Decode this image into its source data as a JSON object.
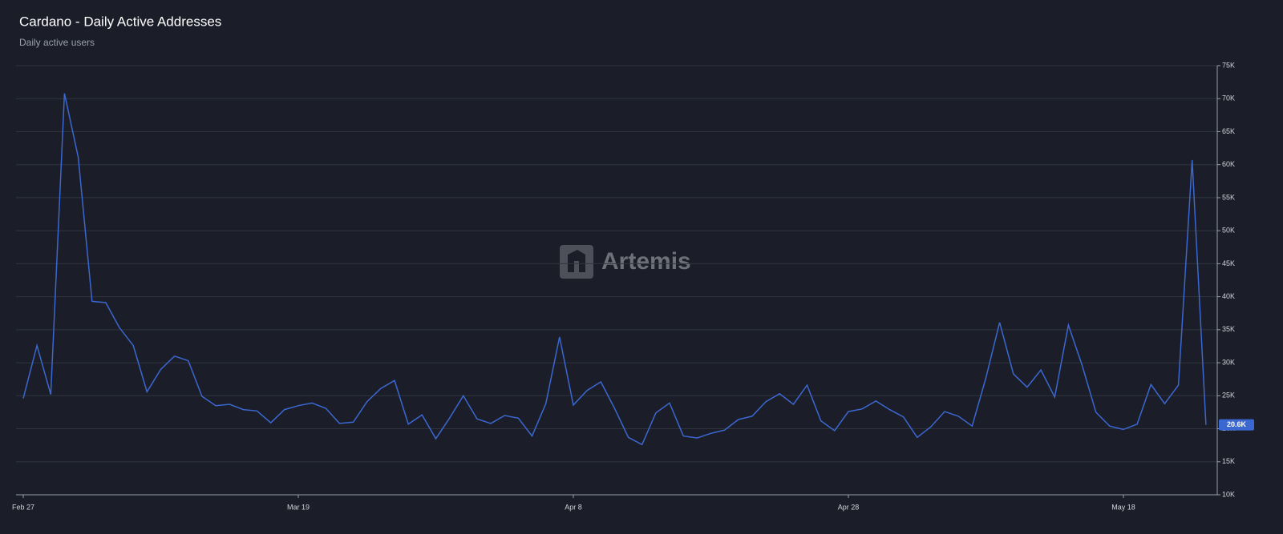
{
  "chart_data": {
    "type": "line",
    "title": "Cardano - Daily Active Addresses",
    "subtitle": "Daily active users",
    "watermark": "Artemis",
    "categories": [
      "Feb 27",
      null,
      null,
      null,
      null,
      null,
      null,
      null,
      null,
      null,
      null,
      null,
      null,
      null,
      null,
      null,
      null,
      null,
      null,
      null,
      "Mar 19",
      null,
      null,
      null,
      null,
      null,
      null,
      null,
      null,
      null,
      null,
      null,
      null,
      null,
      null,
      null,
      null,
      null,
      null,
      null,
      "Apr 8",
      null,
      null,
      null,
      null,
      null,
      null,
      null,
      null,
      null,
      null,
      null,
      null,
      null,
      null,
      null,
      null,
      null,
      null,
      null,
      "Apr 28",
      null,
      null,
      null,
      null,
      null,
      null,
      null,
      null,
      null,
      null,
      null,
      null,
      null,
      null,
      null,
      null,
      null,
      null,
      null,
      "May 18",
      null,
      null,
      null,
      null,
      null,
      null
    ],
    "series": [
      {
        "name": "Daily Active Addresses",
        "color": "#3b67d1",
        "values": [
          24600,
          32600,
          25200,
          70800,
          61100,
          39300,
          39100,
          35300,
          32600,
          25600,
          29000,
          31000,
          30300,
          24900,
          23500,
          23700,
          22900,
          22700,
          20900,
          22900,
          23500,
          23900,
          23100,
          20800,
          21000,
          24100,
          26100,
          27300,
          20700,
          22100,
          18500,
          21600,
          25000,
          21500,
          20800,
          22000,
          21600,
          18900,
          23800,
          33900,
          23600,
          25800,
          27100,
          23100,
          18700,
          17600,
          22400,
          23900,
          18900,
          18600,
          19300,
          19800,
          21400,
          21900,
          24100,
          25300,
          23700,
          26600,
          21200,
          19700,
          22600,
          23000,
          24200,
          22900,
          21800,
          18700,
          20300,
          22600,
          21900,
          20400,
          27700,
          36100,
          28300,
          26300,
          28900,
          24800,
          35700,
          29600,
          22500,
          20400,
          19900,
          20700,
          26700,
          23800,
          26600,
          60700,
          20600
        ],
        "value_labels": [
          null,
          null,
          null,
          null,
          null,
          null,
          null,
          null,
          null,
          null,
          null,
          null,
          null,
          null,
          null,
          null,
          null,
          null,
          null,
          null,
          null,
          null,
          null,
          null,
          null,
          null,
          null,
          null,
          null,
          null,
          null,
          null,
          null,
          null,
          null,
          null,
          null,
          null,
          null,
          null,
          null,
          null,
          null,
          null,
          null,
          null,
          null,
          null,
          null,
          null,
          null,
          null,
          null,
          null,
          null,
          null,
          null,
          null,
          null,
          null,
          null,
          null,
          null,
          null,
          null,
          null,
          null,
          null,
          null,
          null,
          null,
          null,
          null,
          null,
          null,
          null,
          null,
          null,
          null,
          null,
          null,
          null,
          null,
          null,
          null,
          null,
          "20.6K"
        ]
      }
    ],
    "ylim": [
      10000,
      75000
    ],
    "yticks": [
      {
        "value": 10000,
        "label": "10K"
      },
      {
        "value": 15000,
        "label": "15K"
      },
      {
        "value": 20000,
        "label": "20K"
      },
      {
        "value": 25000,
        "label": "25K"
      },
      {
        "value": 30000,
        "label": "30K"
      },
      {
        "value": 35000,
        "label": "35K"
      },
      {
        "value": 40000,
        "label": "40K"
      },
      {
        "value": 45000,
        "label": "45K"
      },
      {
        "value": 50000,
        "label": "50K"
      },
      {
        "value": 55000,
        "label": "55K"
      },
      {
        "value": 60000,
        "label": "60K"
      },
      {
        "value": 65000,
        "label": "65K"
      },
      {
        "value": 70000,
        "label": "70K"
      },
      {
        "value": 75000,
        "label": "75K"
      }
    ],
    "grid": true
  }
}
